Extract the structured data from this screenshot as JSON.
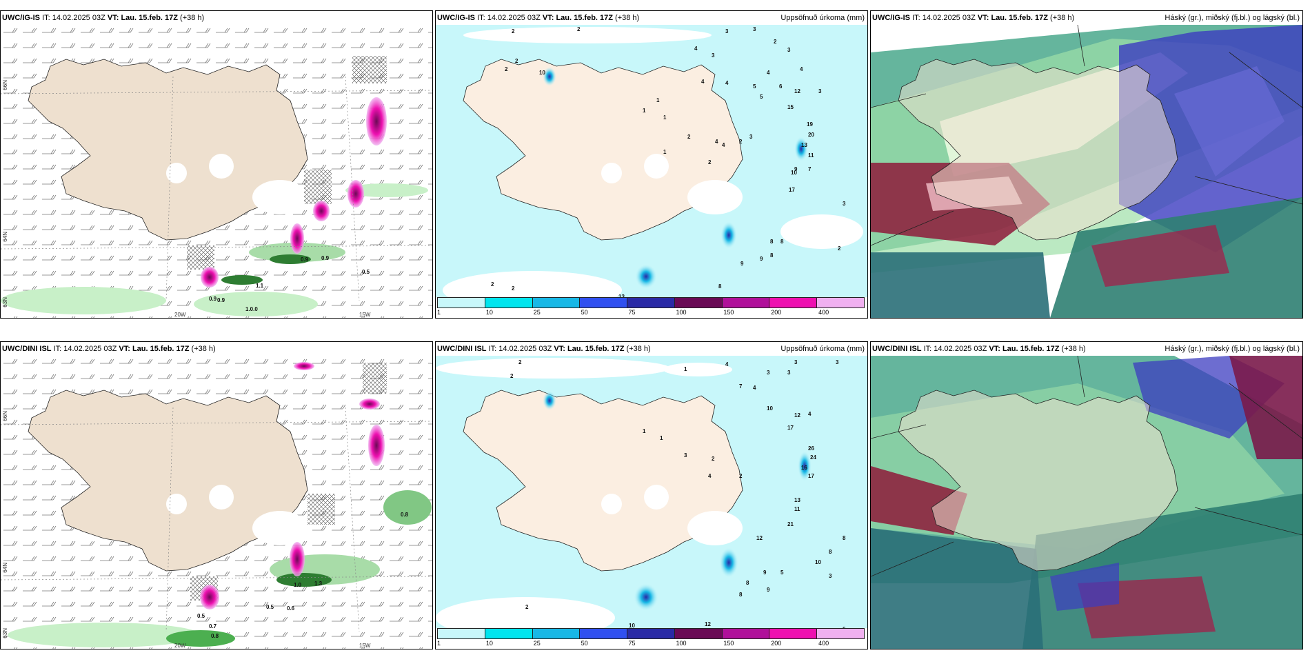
{
  "panels": [
    {
      "model": "UWC/IG-IS",
      "init_label": "IT:",
      "init_time": "14.02.2025 03Z",
      "valid_label": "VT:",
      "valid_time": "Lau. 15.feb. 17Z",
      "lead": "(+38 h)",
      "right_title": "",
      "type": "precip_rate",
      "lon_labels": [
        "20W",
        "15W"
      ],
      "lat_labels": [
        "66N",
        "64N",
        "63N"
      ],
      "values": [
        "0.9",
        "1.1",
        "0.9",
        "0.5",
        "0.9",
        "1.0.0",
        "0.9"
      ]
    },
    {
      "model": "UWC/IG-IS",
      "init_label": "IT:",
      "init_time": "14.02.2025 03Z",
      "valid_label": "VT:",
      "valid_time": "Lau. 15.feb. 17Z",
      "lead": "(+38 h)",
      "right_title": "Uppsöfnuð úrkoma (mm)",
      "type": "accum",
      "values": [
        "2",
        "2",
        "3",
        "3",
        "2",
        "3",
        "2",
        "4",
        "2",
        "10",
        "3",
        "4",
        "4",
        "4",
        "5",
        "6",
        "4",
        "5",
        "12",
        "3",
        "15",
        "19",
        "20",
        "13",
        "11",
        "9",
        "10",
        "7",
        "17",
        "4",
        "8",
        "8",
        "8",
        "9",
        "9",
        "8",
        "2",
        "3",
        "2",
        "2",
        "13",
        "1",
        "1",
        "1",
        "2",
        "4",
        "2",
        "2",
        "3",
        "1"
      ]
    },
    {
      "model": "UWC/IG-IS",
      "init_label": "IT:",
      "init_time": "14.02.2025 03Z",
      "valid_label": "VT:",
      "valid_time": "Lau. 15.feb. 17Z",
      "lead": "(+38 h)",
      "right_title": "Háský (gr.), miðský (fj.bl.) og lágský (bl.)",
      "type": "cloud"
    },
    {
      "model": "UWC/DINI ISL",
      "init_label": "IT:",
      "init_time": "14.02.2025 03Z",
      "valid_label": "VT:",
      "valid_time": "Lau. 15.feb. 17Z",
      "lead": "(+38 h)",
      "right_title": "",
      "type": "precip_rate",
      "lon_labels": [
        "20W",
        "15W"
      ],
      "lat_labels": [
        "66N",
        "64N",
        "63N"
      ],
      "values": [
        "1.0",
        "1.3",
        "0.5",
        "0.6",
        "0.7",
        "0.5",
        "0.8",
        "0.8"
      ]
    },
    {
      "model": "UWC/DINI ISL",
      "init_label": "IT:",
      "init_time": "14.02.2025 03Z",
      "valid_label": "VT:",
      "valid_time": "Lau. 15.feb. 17Z",
      "lead": "(+38 h)",
      "right_title": "Uppsöfnuð úrkoma (mm)",
      "type": "accum",
      "values": [
        "2",
        "1",
        "4",
        "3",
        "3",
        "2",
        "3",
        "3",
        "7",
        "4",
        "10",
        "12",
        "4",
        "17",
        "26",
        "24",
        "16",
        "17",
        "13",
        "11",
        "21",
        "12",
        "8",
        "8",
        "9",
        "10",
        "3",
        "8",
        "8",
        "6",
        "12",
        "10",
        "9",
        "5",
        "2",
        "1",
        "1",
        "3",
        "2",
        "4",
        "2"
      ]
    },
    {
      "model": "UWC/DINI ISL",
      "init_label": "IT:",
      "init_time": "14.02.2025 03Z",
      "valid_label": "VT:",
      "valid_time": "Lau. 15.feb. 17Z",
      "lead": "(+38 h)",
      "right_title": "Háský (gr.), miðský (fj.bl.) og lágský (bl.)",
      "type": "cloud"
    }
  ],
  "colorbar": {
    "labels": [
      "1",
      "10",
      "25",
      "50",
      "75",
      "100",
      "150",
      "200",
      "400"
    ],
    "colors": [
      "#c8f7fa",
      "#00e5ee",
      "#18b8e6",
      "#3050f0",
      "#2a2aa6",
      "#6a0a55",
      "#b0109a",
      "#ee10b0",
      "#f0b0f0"
    ]
  }
}
